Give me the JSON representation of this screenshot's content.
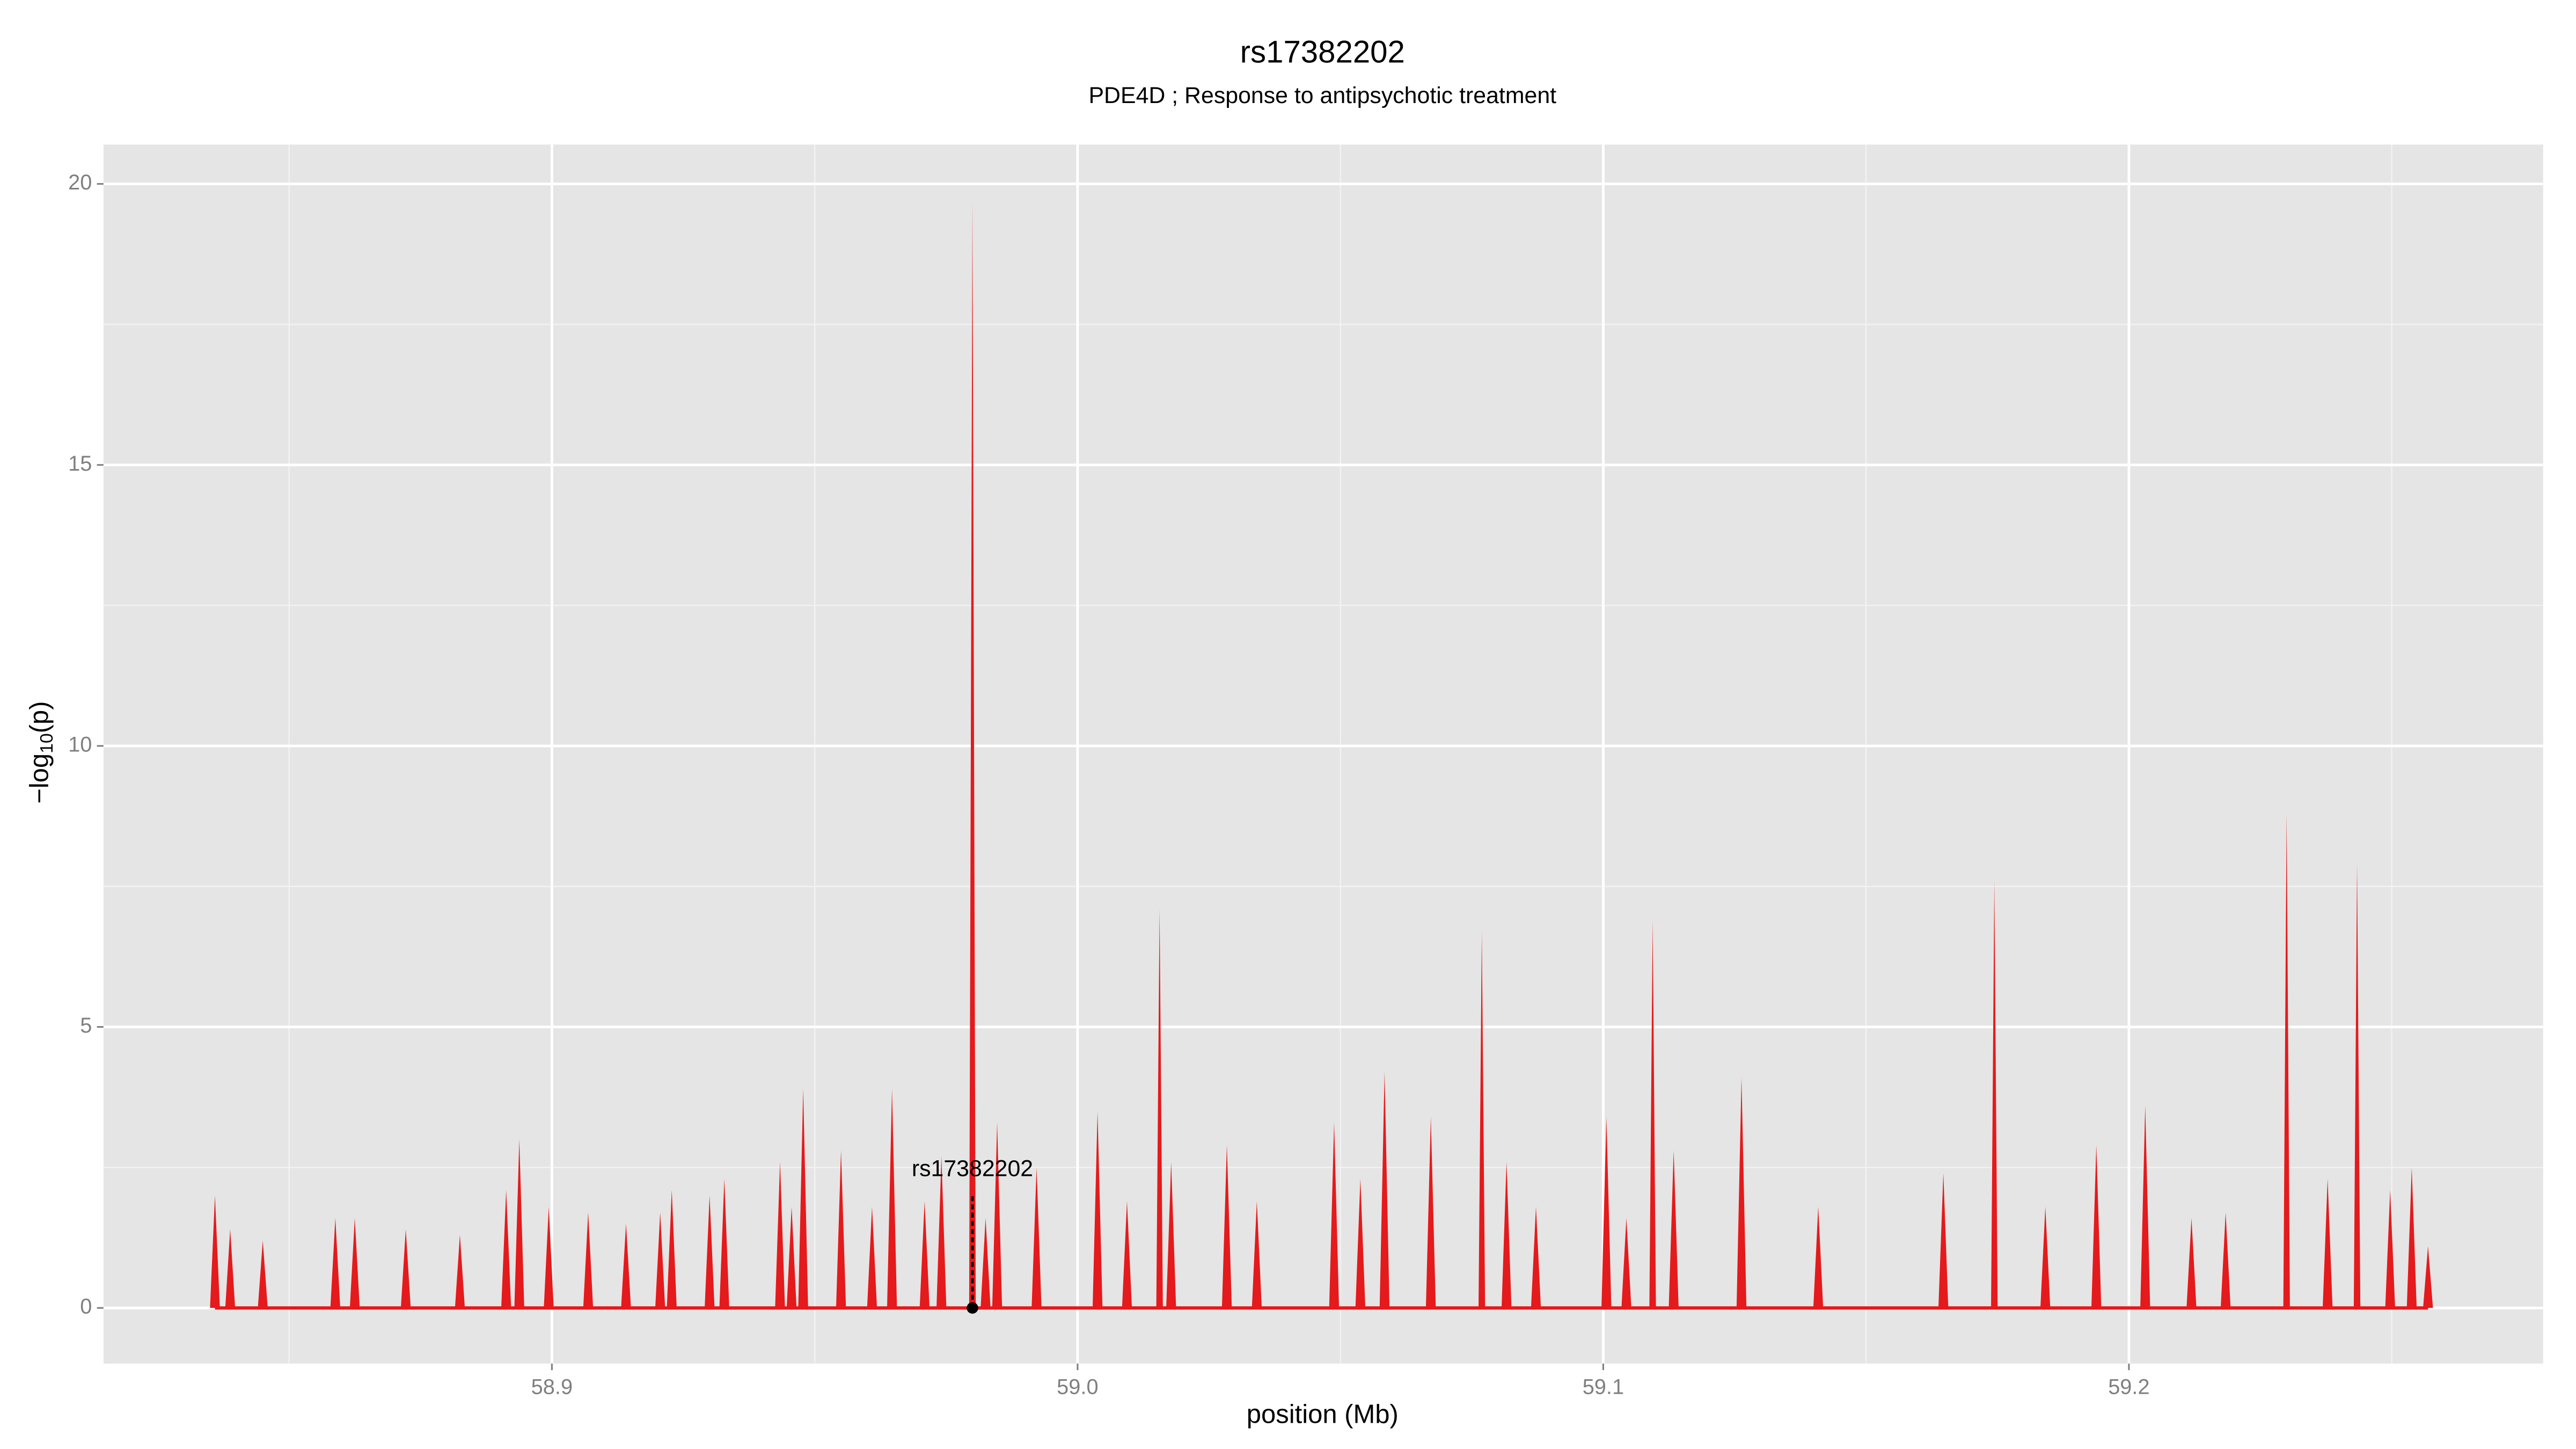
{
  "chart_data": {
    "type": "spike",
    "title": "rs17382202",
    "subtitle": "PDE4D ; Response to antipsychotic treatment",
    "x_label": "position (Mb)",
    "y_label": {
      "prefix": "−log",
      "sub": "10",
      "suffix": "(p)"
    },
    "xlim": [
      58.8147,
      59.2788
    ],
    "ylim": [
      -0.99,
      20.7
    ],
    "xticks": [
      58.9,
      {
        "value": 59,
        "label": "59.0"
      },
      59.1,
      59.2
    ],
    "yticks": [
      0,
      5,
      10,
      15,
      20
    ],
    "grid": true,
    "color": "#e41a1c",
    "x": [
      58.8359,
      58.8388,
      58.845,
      58.8588,
      58.8625,
      58.8722,
      58.8825,
      58.8913,
      58.8938,
      58.8994,
      58.9069,
      58.9141,
      58.9206,
      58.9228,
      58.93,
      58.9328,
      58.9434,
      58.9456,
      58.9478,
      58.955,
      58.9609,
      58.9647,
      58.9709,
      58.9741,
      58.98,
      58.9825,
      58.9847,
      58.9922,
      59.0038,
      59.0094,
      59.0156,
      59.0178,
      59.0284,
      59.0341,
      59.0488,
      59.0538,
      59.0584,
      59.0672,
      59.0769,
      59.0816,
      59.0872,
      59.1006,
      59.1044,
      59.1094,
      59.1134,
      59.1263,
      59.1409,
      59.1647,
      59.1744,
      59.1841,
      59.1938,
      59.2031,
      59.2119,
      59.2184,
      59.23,
      59.2378,
      59.2434,
      59.2497,
      59.2538,
      59.2569
    ],
    "values": [
      2.0,
      1.4,
      1.2,
      1.6,
      1.6,
      1.4,
      1.3,
      2.1,
      3.0,
      1.8,
      1.7,
      1.5,
      1.7,
      2.1,
      2.0,
      2.3,
      2.6,
      1.8,
      3.9,
      2.8,
      1.8,
      3.9,
      1.9,
      2.7,
      19.7,
      1.6,
      3.3,
      2.5,
      3.5,
      1.9,
      7.1,
      2.6,
      2.9,
      1.9,
      3.3,
      2.3,
      4.2,
      3.4,
      6.7,
      2.6,
      1.8,
      3.4,
      1.6,
      6.9,
      2.8,
      4.1,
      1.8,
      2.4,
      7.6,
      1.8,
      2.9,
      3.6,
      1.6,
      1.7,
      8.8,
      2.3,
      7.9,
      2.1,
      2.5,
      1.1
    ],
    "annotation": {
      "text": "rs17382202",
      "x": 58.98,
      "y": 0
    }
  }
}
